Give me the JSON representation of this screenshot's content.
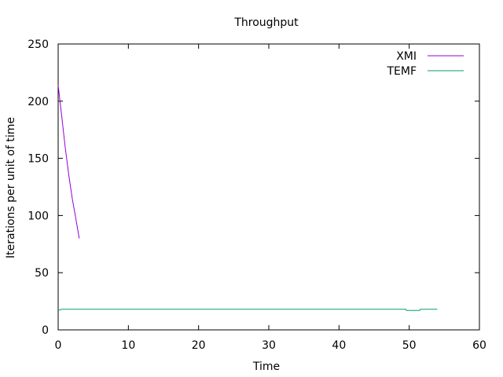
{
  "chart_data": {
    "type": "line",
    "title": "Throughput",
    "xlabel": "Time",
    "ylabel": "Iterations per unit of time",
    "xlim": [
      0,
      60
    ],
    "ylim": [
      0,
      250
    ],
    "xticks": [
      0,
      10,
      20,
      30,
      40,
      50,
      60
    ],
    "yticks": [
      0,
      50,
      100,
      150,
      200,
      250
    ],
    "grid": false,
    "legend_position": "top-right",
    "series": [
      {
        "name": "XMI",
        "color": "#9400d3",
        "x": [
          0,
          0.5,
          1.0,
          1.5,
          2.0,
          2.5,
          3.0
        ],
        "y": [
          214,
          187,
          160,
          136,
          115,
          98,
          80
        ]
      },
      {
        "name": "TEMF",
        "color": "#009e73",
        "x": [
          0,
          0.5,
          49.5,
          49.6,
          51.5,
          51.6,
          54.0
        ],
        "y": [
          17,
          18,
          18,
          17,
          17,
          18,
          18
        ]
      }
    ]
  }
}
